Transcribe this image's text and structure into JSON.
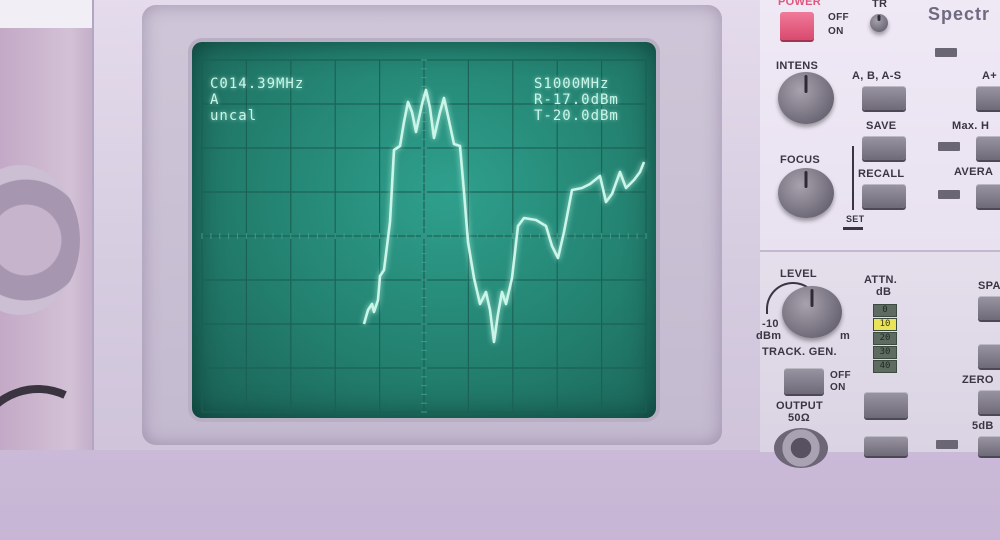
{
  "screen": {
    "center_freq": "C014.39MHz",
    "trace": "A",
    "cal_status": "uncal",
    "span": "S1000MHz",
    "ref_level": "R-17.0dBm",
    "threshold": "T-20.0dBm"
  },
  "panel": {
    "brand": "Spectr",
    "power_label": "POWER",
    "power_off": "OFF",
    "power_on": "ON",
    "tr_label": "TR",
    "intens_label": "INTENS",
    "focus_label": "FOCUS",
    "abs_label": "A, B, A-S",
    "save_label": "SAVE",
    "recall_label": "RECALL",
    "set_label": "SET",
    "a_plus_label": "A+",
    "maxh_label": "Max. H",
    "average_label": "AVERA",
    "level_label": "LEVEL",
    "level_min": "-10",
    "level_unit": "dBm",
    "level_unit2": "m",
    "track_gen_label": "TRACK. GEN.",
    "attn_label": "ATTN.",
    "attn_unit": "dB",
    "attn_values": [
      "0",
      "10",
      "20",
      "30",
      "40"
    ],
    "attn_selected": "10",
    "tg_off": "OFF",
    "tg_on": "ON",
    "output_label": "OUTPUT",
    "output_impedance": "50Ω",
    "spa_label": "SPA",
    "zero_label": "ZERO",
    "five_db_label": "5dB"
  },
  "colors": {
    "screen": "#23806f",
    "trace": "#c9f6e9",
    "attn_active": "#e9e35a"
  }
}
